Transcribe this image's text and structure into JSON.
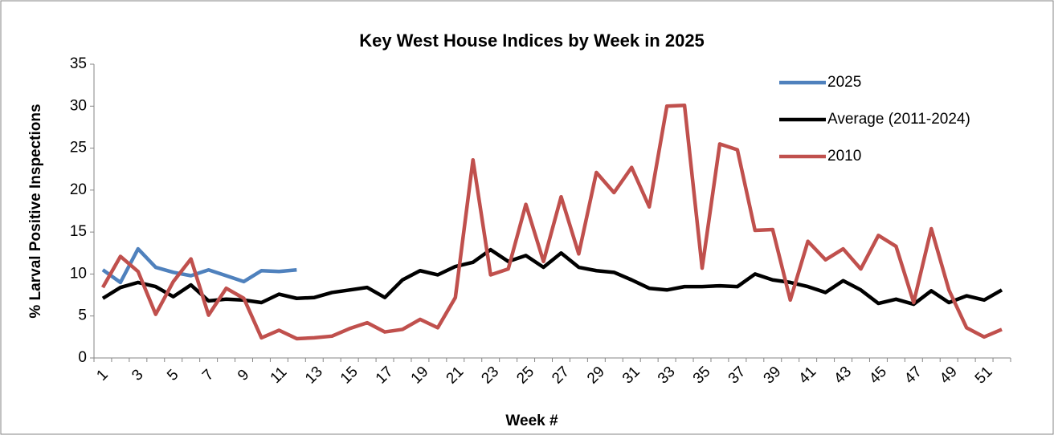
{
  "chart_data": {
    "type": "line",
    "title": "Key West House Indices by Week in 2025",
    "x_label": "Week #",
    "y_label": "% Larval Positive Inspections",
    "categories": [
      1,
      null,
      3,
      null,
      5,
      null,
      7,
      null,
      9,
      null,
      11,
      null,
      13,
      null,
      15,
      null,
      17,
      null,
      19,
      null,
      21,
      null,
      23,
      null,
      25,
      null,
      27,
      null,
      29,
      null,
      31,
      null,
      33,
      null,
      35,
      null,
      37,
      null,
      39,
      null,
      41,
      null,
      43,
      null,
      45,
      null,
      47,
      null,
      49,
      null,
      51,
      null
    ],
    "ylim": [
      0,
      35
    ],
    "yticks": [
      0,
      5,
      10,
      15,
      20,
      25,
      30,
      35
    ],
    "legend": "top-right",
    "series": [
      {
        "name": "2025",
        "color": "#4f81bd",
        "values": [
          10.5,
          9.0,
          13.0,
          10.8,
          10.2,
          9.8,
          10.5,
          9.8,
          9.1,
          10.4,
          10.3,
          10.5,
          null,
          null,
          null,
          null,
          null,
          null,
          null,
          null,
          null,
          null,
          null,
          null,
          null,
          null,
          null,
          null,
          null,
          null,
          null,
          null,
          null,
          null,
          null,
          null,
          null,
          null,
          null,
          null,
          null,
          null,
          null,
          null,
          null,
          null,
          null,
          null,
          null,
          null,
          null,
          null
        ]
      },
      {
        "name": "Average (2011-2024)",
        "color": "#000000",
        "values": [
          7.1,
          8.4,
          9.0,
          8.5,
          7.3,
          8.7,
          6.8,
          7.0,
          6.9,
          6.6,
          7.6,
          7.1,
          7.2,
          7.8,
          8.1,
          8.4,
          7.2,
          9.3,
          10.4,
          9.9,
          10.9,
          11.4,
          12.9,
          11.5,
          12.2,
          10.8,
          12.5,
          10.8,
          10.4,
          10.2,
          9.3,
          8.3,
          8.1,
          8.5,
          8.5,
          8.6,
          8.5,
          10.0,
          9.3,
          9.0,
          8.5,
          7.8,
          9.2,
          8.1,
          6.5,
          7.0,
          6.4,
          8.0,
          6.6,
          7.4,
          6.9,
          8.1
        ]
      },
      {
        "name": "2010",
        "color": "#c0504d",
        "values": [
          8.4,
          12.1,
          10.3,
          5.2,
          9.1,
          11.8,
          5.1,
          8.3,
          7.1,
          2.4,
          3.3,
          2.3,
          2.4,
          2.6,
          3.5,
          4.2,
          3.1,
          3.4,
          4.6,
          3.6,
          7.2,
          23.6,
          9.9,
          10.6,
          18.3,
          11.5,
          19.2,
          12.4,
          22.1,
          19.7,
          22.7,
          18.0,
          30.0,
          30.1,
          10.7,
          25.5,
          24.8,
          15.2,
          15.3,
          6.9,
          13.9,
          11.7,
          13.0,
          10.6,
          14.6,
          13.3,
          6.6,
          15.4,
          8.1,
          3.6,
          2.5,
          3.4
        ]
      }
    ]
  }
}
